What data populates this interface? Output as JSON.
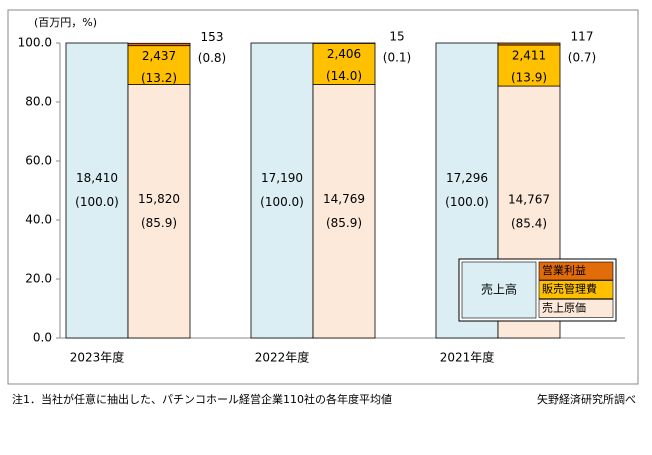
{
  "chart_data": {
    "type": "stacked_bar_pairs",
    "unit_label": "(百万円，%)",
    "categories": [
      "2023年度",
      "2022年度",
      "2021年度"
    ],
    "ylim": [
      0,
      100
    ],
    "yticks": [
      {
        "value": 0,
        "label": "0.0"
      },
      {
        "value": 20,
        "label": "20.0"
      },
      {
        "value": 40,
        "label": "40.0"
      },
      {
        "value": 60,
        "label": "60.0"
      },
      {
        "value": 80,
        "label": "80.0"
      },
      {
        "value": 100,
        "label": "100.0"
      }
    ],
    "series": [
      {
        "name": "売上高",
        "color": "#daeef3",
        "stack": 0,
        "values": [
          100,
          100,
          100
        ],
        "value_labels": [
          "(100.0)",
          "(100.0)",
          "(100.0)"
        ],
        "amount_labels": [
          "18,410",
          "17,190",
          "17,296"
        ]
      },
      {
        "name": "売上原価",
        "color": "#fde9d9",
        "stack": 1,
        "values": [
          85.9,
          85.9,
          85.4
        ],
        "value_labels": [
          "(85.9)",
          "(85.9)",
          "(85.4)"
        ],
        "amount_labels": [
          "15,820",
          "14,769",
          "14,767"
        ]
      },
      {
        "name": "販売管理費",
        "color": "#ffc000",
        "stack": 1,
        "values": [
          13.2,
          14.0,
          13.9
        ],
        "value_labels": [
          "(13.2)",
          "(14.0)",
          "(13.9)"
        ],
        "amount_labels": [
          "2,437",
          "2,406",
          "2,411"
        ]
      },
      {
        "name": "営業利益",
        "color": "#e26b0a",
        "stack": 1,
        "values": [
          0.8,
          0.1,
          0.7
        ],
        "value_labels": [
          "(0.8)",
          "(0.1)",
          "(0.7)"
        ],
        "amount_labels": [
          "153",
          "15",
          "117"
        ]
      }
    ],
    "notes": [
      "注1．当社が任意に抽出した、パチンコホール経営企業110社の各年度平均値",
      "矢野経済研究所調べ"
    ]
  }
}
